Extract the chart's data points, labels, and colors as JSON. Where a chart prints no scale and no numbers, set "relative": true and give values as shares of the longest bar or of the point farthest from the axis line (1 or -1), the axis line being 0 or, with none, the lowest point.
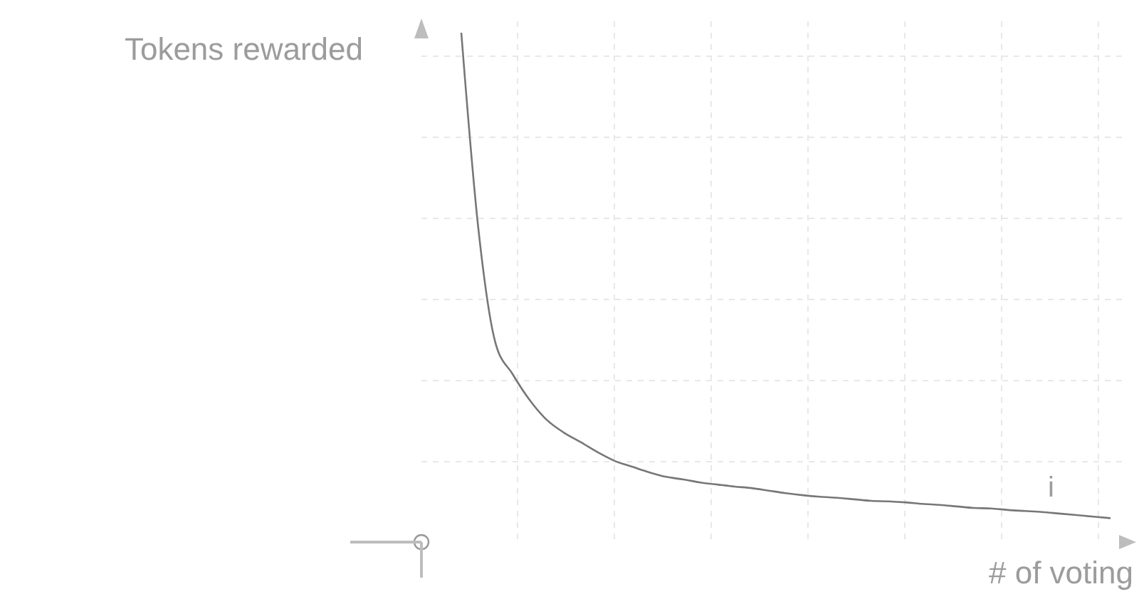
{
  "chart_data": {
    "type": "line",
    "relative": true,
    "ylabel": "Tokens rewarded",
    "xlabel": "# of voting",
    "grid": true,
    "marker": "none",
    "line_style": "solid",
    "annotations": [
      "i"
    ],
    "categories": [
      null,
      null,
      null,
      null,
      null,
      null,
      null,
      null,
      null,
      null,
      null,
      null,
      null,
      null,
      null,
      null,
      null,
      null,
      null,
      null,
      null,
      null,
      null,
      null,
      null,
      null,
      null,
      null,
      null,
      null,
      null,
      null,
      null,
      null,
      null,
      null,
      null,
      null,
      null
    ],
    "series": [
      {
        "color": "#777777",
        "values": [
          1,
          0.615,
          0.391,
          0.33,
          0.279,
          0.24,
          0.215,
          0.196,
          0.176,
          0.159,
          0.148,
          0.137,
          0.128,
          0.123,
          0.117,
          0.113,
          0.109,
          0.106,
          0.101,
          0.096,
          0.092,
          0.089,
          0.087,
          0.084,
          0.081,
          0.08,
          0.078,
          0.075,
          0.073,
          0.07,
          0.067,
          0.066,
          0.063,
          0.061,
          0.059,
          0.056,
          0.053,
          0.05,
          0.047
        ]
      }
    ]
  }
}
